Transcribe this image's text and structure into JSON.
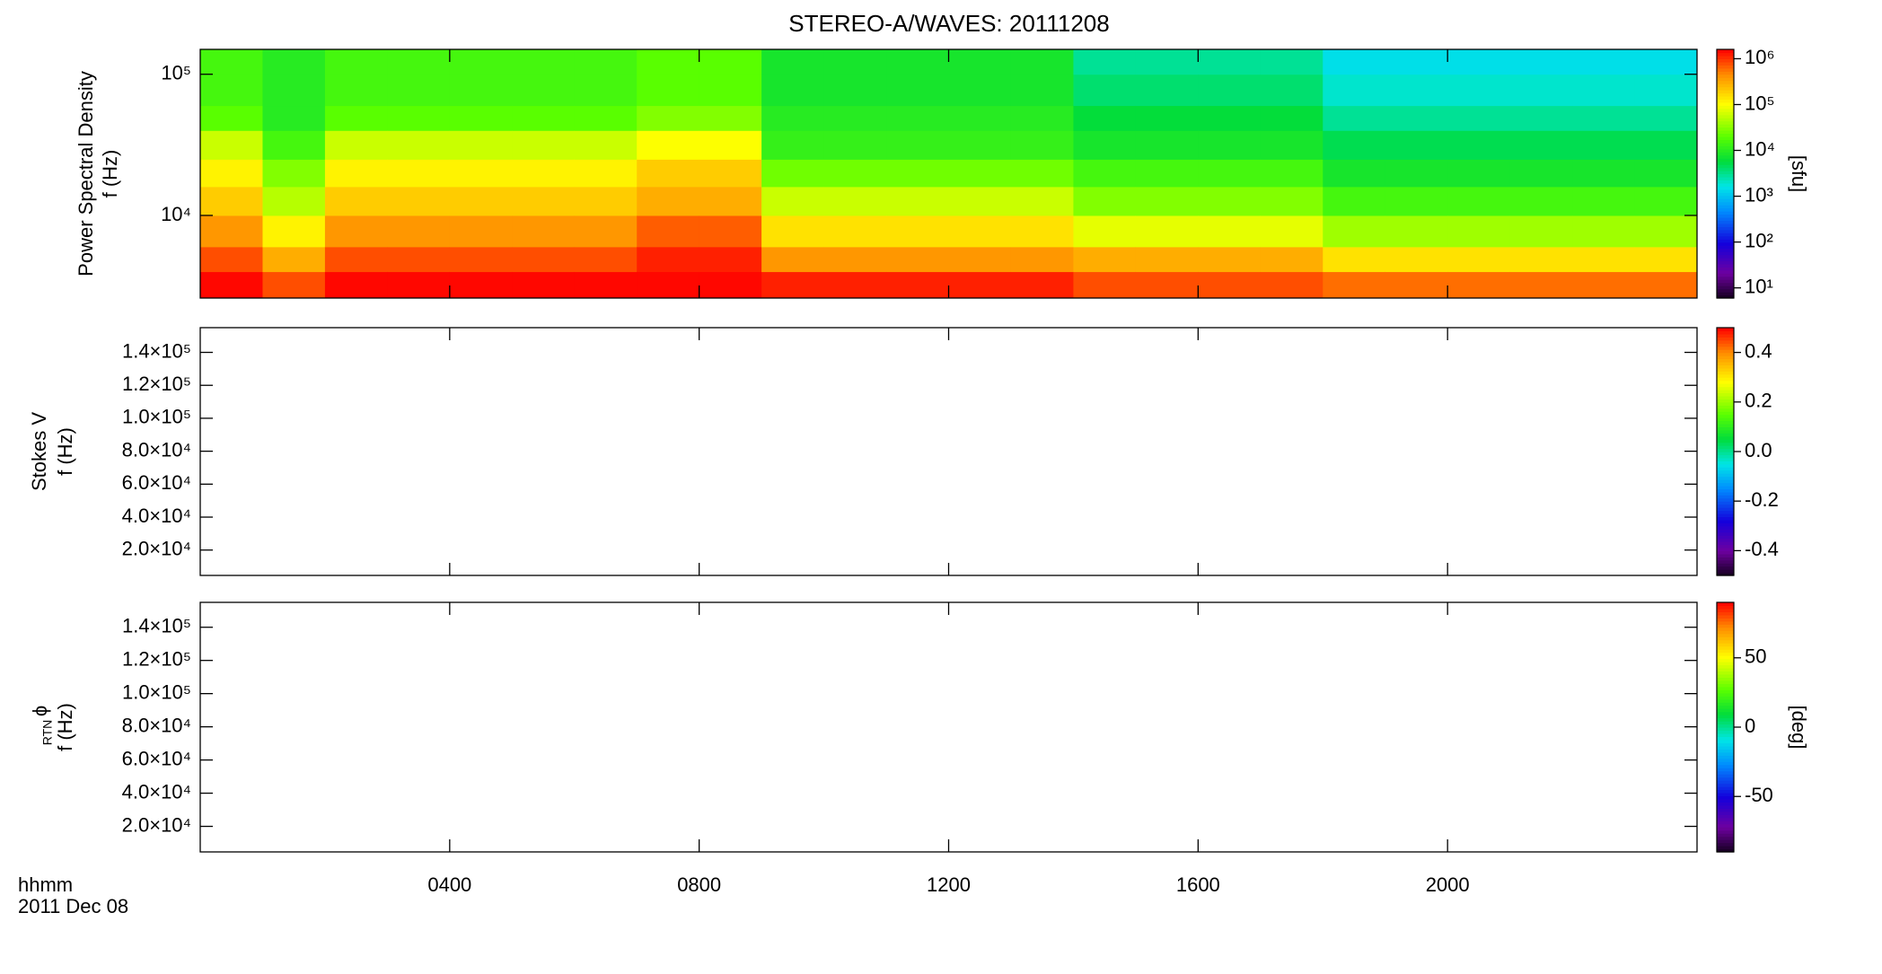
{
  "chart_data": [
    {
      "type": "heatmap",
      "title": "STEREO-A/WAVES: 20111208",
      "ylabel": [
        "Power Spectral Density",
        "f (Hz)"
      ],
      "ylog": true,
      "ylim": [
        2600,
        150000
      ],
      "yticks": [
        {
          "value": 10000,
          "label": "10⁴"
        },
        {
          "value": 100000,
          "label": "10⁵"
        }
      ],
      "xbins": [
        0,
        1,
        2,
        3,
        4,
        5,
        6,
        7,
        8,
        9,
        10,
        11,
        12,
        13,
        14,
        15,
        16,
        17,
        18,
        19,
        20,
        21,
        22,
        23,
        24
      ],
      "ybins": [
        2600,
        4000,
        6000,
        10000,
        16000,
        25000,
        40000,
        60000,
        100000,
        150000
      ],
      "values": [
        [
          1500000,
          800000,
          400000,
          200000,
          120000,
          60000,
          20000,
          15000,
          15000
        ],
        [
          800000,
          300000,
          120000,
          50000,
          30000,
          15000,
          10000,
          10000,
          10000
        ],
        [
          1500000,
          800000,
          400000,
          200000,
          120000,
          60000,
          20000,
          15000,
          15000
        ],
        [
          1500000,
          800000,
          400000,
          200000,
          120000,
          60000,
          20000,
          15000,
          15000
        ],
        [
          1500000,
          800000,
          400000,
          200000,
          120000,
          60000,
          20000,
          15000,
          15000
        ],
        [
          1500000,
          800000,
          400000,
          200000,
          120000,
          60000,
          20000,
          15000,
          15000
        ],
        [
          1500000,
          800000,
          400000,
          200000,
          120000,
          60000,
          20000,
          15000,
          15000
        ],
        [
          1500000,
          1200000,
          700000,
          300000,
          200000,
          100000,
          30000,
          20000,
          20000
        ],
        [
          1500000,
          1200000,
          700000,
          300000,
          200000,
          100000,
          30000,
          20000,
          20000
        ],
        [
          1200000,
          400000,
          150000,
          60000,
          25000,
          12000,
          10000,
          8000,
          8000
        ],
        [
          1200000,
          400000,
          150000,
          60000,
          25000,
          12000,
          10000,
          8000,
          8000
        ],
        [
          1200000,
          400000,
          150000,
          60000,
          25000,
          12000,
          10000,
          8000,
          8000
        ],
        [
          1200000,
          400000,
          150000,
          60000,
          25000,
          12000,
          10000,
          8000,
          8000
        ],
        [
          1200000,
          400000,
          150000,
          60000,
          25000,
          12000,
          10000,
          8000,
          8000
        ],
        [
          800000,
          300000,
          80000,
          30000,
          15000,
          8000,
          6000,
          4000,
          3000
        ],
        [
          800000,
          300000,
          80000,
          30000,
          15000,
          8000,
          6000,
          4000,
          3000
        ],
        [
          800000,
          300000,
          80000,
          30000,
          15000,
          8000,
          6000,
          4000,
          3000
        ],
        [
          800000,
          300000,
          80000,
          30000,
          15000,
          8000,
          6000,
          4000,
          3000
        ],
        [
          600000,
          150000,
          40000,
          15000,
          8000,
          5000,
          3000,
          2000,
          1500
        ],
        [
          600000,
          150000,
          40000,
          15000,
          8000,
          5000,
          3000,
          2000,
          1500
        ],
        [
          600000,
          150000,
          40000,
          15000,
          8000,
          5000,
          3000,
          2000,
          1500
        ],
        [
          600000,
          150000,
          40000,
          15000,
          8000,
          5000,
          3000,
          2000,
          1500
        ],
        [
          600000,
          150000,
          40000,
          15000,
          8000,
          5000,
          3000,
          2000,
          1500
        ],
        [
          600000,
          150000,
          40000,
          15000,
          8000,
          5000,
          3000,
          2000,
          1500
        ]
      ],
      "colormap": "rainbow",
      "zlog": true,
      "zlim": [
        6,
        1600000
      ],
      "zticks": [
        {
          "value": 10,
          "label": "10¹"
        },
        {
          "value": 100,
          "label": "10²"
        },
        {
          "value": 1000,
          "label": "10³"
        },
        {
          "value": 10000,
          "label": "10⁴"
        },
        {
          "value": 100000,
          "label": "10⁵"
        },
        {
          "value": 1000000,
          "label": "10⁶"
        }
      ],
      "zlabel": "[sfu]"
    },
    {
      "type": "heatmap",
      "ylabel": [
        "Stokes V",
        "f (Hz)"
      ],
      "ylim": [
        4600,
        155000
      ],
      "yticks": [
        {
          "value": 20000,
          "label": "2.0×10⁴"
        },
        {
          "value": 40000,
          "label": "4.0×10⁴"
        },
        {
          "value": 60000,
          "label": "6.0×10⁴"
        },
        {
          "value": 80000,
          "label": "8.0×10⁴"
        },
        {
          "value": 100000,
          "label": "1.0×10⁵"
        },
        {
          "value": 120000,
          "label": "1.2×10⁵"
        },
        {
          "value": 140000,
          "label": "1.4×10⁵"
        }
      ],
      "colormap": "rainbow",
      "zlim": [
        -0.5,
        0.5
      ],
      "zticks": [
        -0.4,
        -0.2,
        {
          "value": 0,
          "label": "0.0"
        },
        0.2,
        0.4
      ]
    },
    {
      "type": "heatmap",
      "ylabel_symbol": "ϕ",
      "ylabel_subscript": "RTN",
      "ylabel": [
        "f (Hz)"
      ],
      "ylim": [
        4600,
        155000
      ],
      "yticks": [
        {
          "value": 20000,
          "label": "2.0×10⁴"
        },
        {
          "value": 40000,
          "label": "4.0×10⁴"
        },
        {
          "value": 60000,
          "label": "6.0×10⁴"
        },
        {
          "value": 80000,
          "label": "8.0×10⁴"
        },
        {
          "value": 100000,
          "label": "1.0×10⁵"
        },
        {
          "value": 120000,
          "label": "1.2×10⁵"
        },
        {
          "value": 140000,
          "label": "1.4×10⁵"
        }
      ],
      "colormap": "rainbow",
      "zlim": [
        -90,
        90
      ],
      "zticks": [
        -50,
        0,
        50
      ],
      "zlabel": "[deg]",
      "xlim": [
        0,
        24
      ],
      "xticks": [
        {
          "value": 4,
          "label": "0400"
        },
        {
          "value": 8,
          "label": "0800"
        },
        {
          "value": 12,
          "label": "1200"
        },
        {
          "value": 16,
          "label": "1600"
        },
        {
          "value": 20,
          "label": "2000"
        }
      ],
      "xlabel": "hhmm",
      "date": "2011 Dec 08"
    }
  ]
}
